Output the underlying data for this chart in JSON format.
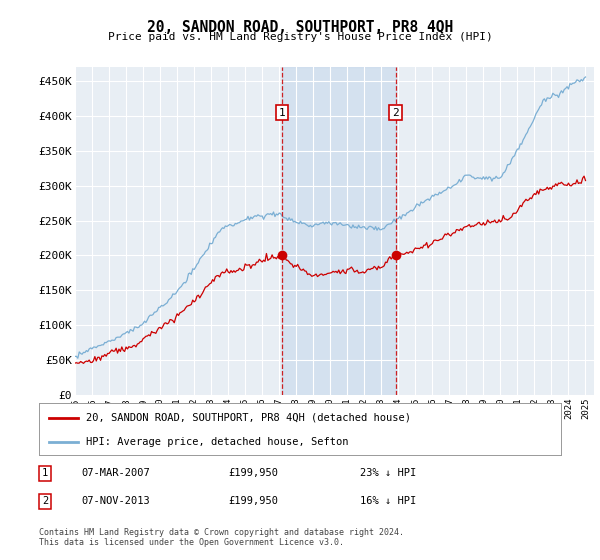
{
  "title": "20, SANDON ROAD, SOUTHPORT, PR8 4QH",
  "subtitle": "Price paid vs. HM Land Registry's House Price Index (HPI)",
  "ylabel_ticks": [
    "£0",
    "£50K",
    "£100K",
    "£150K",
    "£200K",
    "£250K",
    "£300K",
    "£350K",
    "£400K",
    "£450K"
  ],
  "ytick_vals": [
    0,
    50000,
    100000,
    150000,
    200000,
    250000,
    300000,
    350000,
    400000,
    450000
  ],
  "ylim": [
    0,
    470000
  ],
  "xlim_start": 1995.0,
  "xlim_end": 2025.5,
  "sale1_x": 2007.17,
  "sale1_y": 199950,
  "sale2_x": 2013.84,
  "sale2_y": 199950,
  "sale1_date": "07-MAR-2007",
  "sale1_price": "£199,950",
  "sale1_hpi": "23% ↓ HPI",
  "sale2_date": "07-NOV-2013",
  "sale2_price": "£199,950",
  "sale2_hpi": "16% ↓ HPI",
  "hpi_color": "#7bafd4",
  "price_color": "#cc0000",
  "marker_color": "#cc0000",
  "sale_line_color": "#cc0000",
  "legend_label1": "20, SANDON ROAD, SOUTHPORT, PR8 4QH (detached house)",
  "legend_label2": "HPI: Average price, detached house, Sefton",
  "footnote": "Contains HM Land Registry data © Crown copyright and database right 2024.\nThis data is licensed under the Open Government Licence v3.0.",
  "background_color": "#ffffff",
  "plot_bg_color": "#e8eef4",
  "grid_color": "#ffffff",
  "span_color": "#c5d8ec"
}
